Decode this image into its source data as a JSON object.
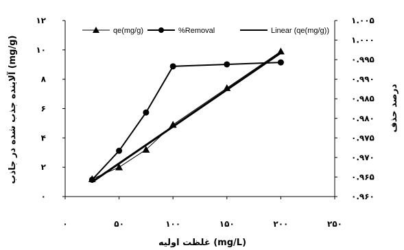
{
  "chart_data": {
    "type": "line",
    "x_axis": {
      "title": "غلظت اولیه (mg/L)",
      "range": [
        0,
        250
      ],
      "tick_labels": [
        "۰",
        "۵۰",
        "۱۰۰",
        "۱۵۰",
        "۲۰۰",
        "۲۵۰"
      ]
    },
    "y_axis_left": {
      "title": "آلاینده جذب شده در جاذب (mg/g)",
      "range": [
        0,
        12
      ],
      "tick_labels": [
        "۰",
        "۲",
        "۴",
        "۶",
        "۸",
        "۱۰",
        "۱۲"
      ]
    },
    "y_axis_right": {
      "title": "درصد حذف",
      "range": [
        0.96,
        1.005
      ],
      "tick_labels": [
        "۰.۹۶۰",
        "۰.۹۶۵",
        "۰.۹۷۰",
        "۰.۹۷۵",
        "۰.۹۸۰",
        "۰.۹۸۵",
        "۰.۹۹۰",
        "۰.۹۹۵",
        "۱.۰۰۰",
        "۱.۰۰۵"
      ]
    },
    "series": [
      {
        "name": "qe(mg/g)",
        "axis": "left",
        "marker": "triangle",
        "x": [
          25,
          50,
          75,
          100,
          150,
          200
        ],
        "y": [
          1.2,
          2.0,
          3.2,
          4.9,
          7.4,
          9.9
        ]
      },
      {
        "name": "%Removal",
        "axis": "right",
        "marker": "circle",
        "x": [
          25,
          50,
          75,
          100,
          150,
          200
        ],
        "y": [
          0.9643,
          0.9717,
          0.9815,
          0.9933,
          0.9938,
          0.9943
        ]
      },
      {
        "name": "Linear (qe(mg/g))",
        "axis": "left",
        "marker": "none",
        "x": [
          25,
          200
        ],
        "y": [
          1.0,
          9.8
        ]
      }
    ],
    "legend": {
      "placement": "top"
    },
    "grid": false
  },
  "colors": {
    "line": "#000000",
    "background": "#ffffff"
  }
}
